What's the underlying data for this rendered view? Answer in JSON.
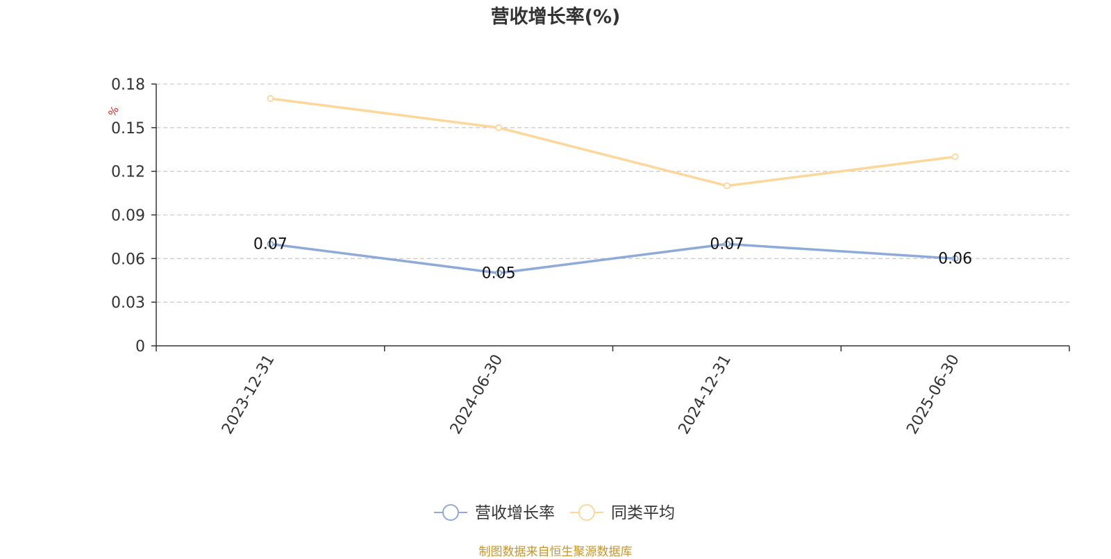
{
  "chart_data": {
    "type": "line",
    "title": "营收增长率(%)",
    "ylabel": "%",
    "xlabel": "",
    "categories": [
      "2023-12-31",
      "2024-06-30",
      "2024-12-31",
      "2025-06-30"
    ],
    "ylim": [
      0,
      0.18
    ],
    "yticks": [
      0,
      0.03,
      0.06,
      0.09,
      0.12,
      0.15,
      0.18
    ],
    "grid": true,
    "legend_position": "bottom-center",
    "series": [
      {
        "name": "营收增长率",
        "values": [
          0.07,
          0.05,
          0.07,
          0.06
        ],
        "color": "#8eaad8",
        "labels": [
          "0.07",
          "0.05",
          "0.07",
          "0.06"
        ]
      },
      {
        "name": "同类平均",
        "values": [
          0.17,
          0.15,
          0.11,
          0.13
        ],
        "color": "#fdd79a"
      }
    ]
  },
  "source_note": "制图数据来自恒生聚源数据库",
  "colors": {
    "title": "#333333",
    "axis": "#333333",
    "grid": "#cccccc",
    "ylabel": "#e02020",
    "source": "#c8962a"
  }
}
